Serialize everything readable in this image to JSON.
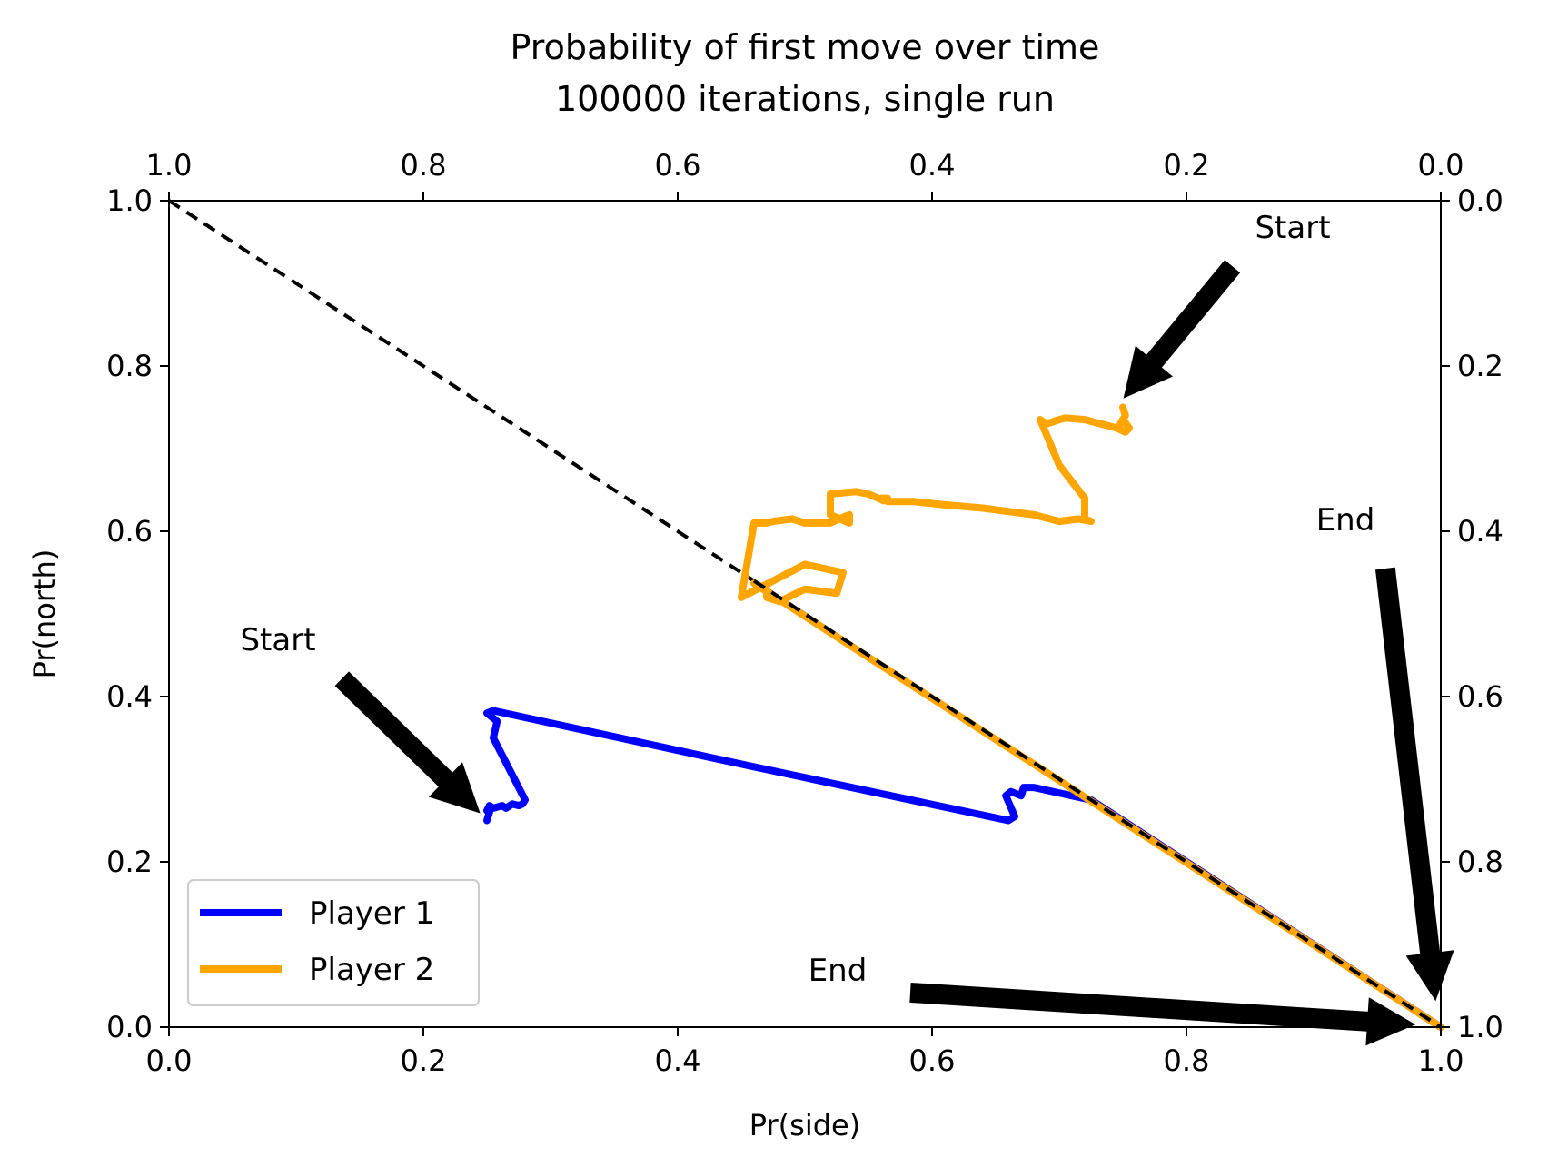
{
  "chart_data": {
    "type": "line",
    "title": "Probability of first move over time",
    "subtitle": "100000 iterations, single run",
    "xlabel": "Pr(side)",
    "ylabel": "Pr(north)",
    "xlim": [
      0.0,
      1.0
    ],
    "ylim": [
      0.0,
      1.0
    ],
    "top_axis_lim": [
      1.0,
      0.0
    ],
    "right_axis_lim": [
      0.0,
      1.0
    ],
    "x_ticks": [
      "0.0",
      "0.2",
      "0.4",
      "0.6",
      "0.8",
      "1.0"
    ],
    "y_ticks": [
      "0.0",
      "0.2",
      "0.4",
      "0.6",
      "0.8",
      "1.0"
    ],
    "top_ticks": [
      "1.0",
      "0.8",
      "0.6",
      "0.4",
      "0.2",
      "0.0"
    ],
    "right_ticks": [
      "0.0",
      "0.2",
      "0.4",
      "0.6",
      "0.8",
      "1.0"
    ],
    "grid": false,
    "legend_position": "lower-left",
    "reference_line": {
      "style": "dashed",
      "color": "#000000",
      "x": [
        0.0,
        1.0
      ],
      "y": [
        1.0,
        0.0
      ]
    },
    "series": [
      {
        "name": "Player 1",
        "color": "#0000ff",
        "x": [
          0.25,
          0.252,
          0.25,
          0.252,
          0.255,
          0.262,
          0.265,
          0.27,
          0.275,
          0.278,
          0.28,
          0.265,
          0.255,
          0.258,
          0.25,
          0.255,
          0.46,
          0.66,
          0.665,
          0.658,
          0.662,
          0.67,
          0.672,
          0.68,
          0.725,
          0.75,
          0.8,
          0.9,
          1.0
        ],
        "y": [
          0.25,
          0.26,
          0.262,
          0.268,
          0.265,
          0.268,
          0.265,
          0.27,
          0.268,
          0.27,
          0.275,
          0.32,
          0.35,
          0.37,
          0.38,
          0.383,
          0.315,
          0.25,
          0.255,
          0.28,
          0.285,
          0.28,
          0.29,
          0.29,
          0.275,
          0.25,
          0.2,
          0.1,
          0.0
        ]
      },
      {
        "name": "Player 2",
        "color": "#ffa500",
        "x": [
          0.75,
          0.752,
          0.748,
          0.75,
          0.755,
          0.752,
          0.745,
          0.72,
          0.705,
          0.7,
          0.69,
          0.685,
          0.7,
          0.72,
          0.72,
          0.725,
          0.715,
          0.7,
          0.68,
          0.655,
          0.64,
          0.61,
          0.585,
          0.565,
          0.565,
          0.56,
          0.562,
          0.55,
          0.54,
          0.52,
          0.52,
          0.535,
          0.535,
          0.53,
          0.52,
          0.5,
          0.49,
          0.475,
          0.47,
          0.46,
          0.45,
          0.5,
          0.53,
          0.525,
          0.5,
          0.48,
          0.47,
          0.47,
          0.46,
          1.0
        ],
        "y": [
          0.75,
          0.74,
          0.73,
          0.735,
          0.725,
          0.72,
          0.725,
          0.735,
          0.737,
          0.735,
          0.73,
          0.735,
          0.68,
          0.64,
          0.615,
          0.612,
          0.615,
          0.612,
          0.62,
          0.625,
          0.628,
          0.632,
          0.636,
          0.636,
          0.64,
          0.64,
          0.637,
          0.645,
          0.648,
          0.645,
          0.62,
          0.61,
          0.62,
          0.617,
          0.61,
          0.61,
          0.615,
          0.612,
          0.61,
          0.61,
          0.52,
          0.56,
          0.55,
          0.525,
          0.53,
          0.515,
          0.52,
          0.53,
          0.537,
          0.0
        ]
      }
    ],
    "legend": [
      "Player 1",
      "Player 2"
    ],
    "annotations": [
      {
        "text": "Start",
        "points_to": [
          0.25,
          0.25
        ]
      },
      {
        "text": "Start",
        "points_to": [
          0.75,
          0.75
        ]
      },
      {
        "text": "End",
        "points_to": [
          0.98,
          0.0
        ]
      },
      {
        "text": "End",
        "points_to": [
          1.0,
          0.03
        ]
      }
    ]
  }
}
